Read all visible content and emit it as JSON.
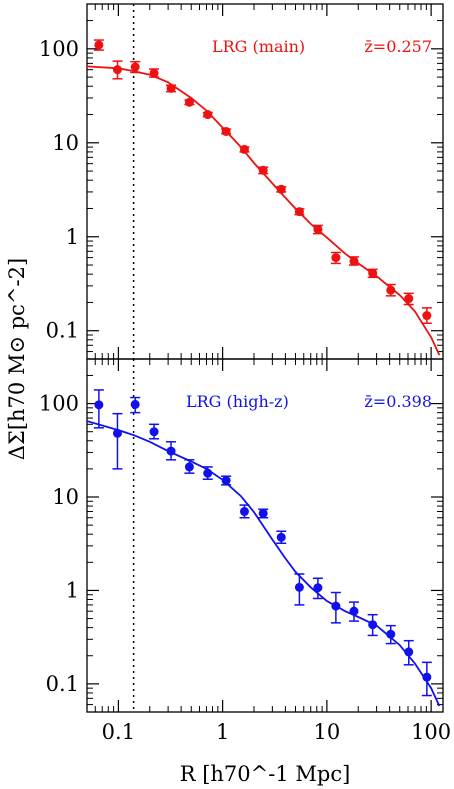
{
  "chart_data": {
    "type": "scatter",
    "xlabel": "R [h70^-1 Mpc]",
    "ylabel": "ΔΣ[h70 M⊙ pc^-2]",
    "x_scale": "log",
    "y_scale": "log",
    "xlim": [
      0.05,
      130
    ],
    "ylim": [
      0.05,
      300
    ],
    "x_ticks": [
      "0.1",
      "1",
      "10",
      "100"
    ],
    "y_ticks": [
      "0.1",
      "1",
      "10",
      "100"
    ],
    "vline": 0.14,
    "panels": [
      {
        "label": "LRG (main)",
        "zlabel": "z̄=0.257",
        "color": "#ee1111",
        "points": [
          {
            "x": 0.065,
            "y": 110,
            "lo": 97,
            "hi": 124
          },
          {
            "x": 0.098,
            "y": 60,
            "lo": 48,
            "hi": 74
          },
          {
            "x": 0.145,
            "y": 64,
            "lo": 56,
            "hi": 73
          },
          {
            "x": 0.22,
            "y": 55,
            "lo": 50,
            "hi": 61
          },
          {
            "x": 0.32,
            "y": 38,
            "lo": 35,
            "hi": 41
          },
          {
            "x": 0.48,
            "y": 27,
            "lo": 25.5,
            "hi": 28.5
          },
          {
            "x": 0.72,
            "y": 20,
            "lo": 19,
            "hi": 21
          },
          {
            "x": 1.08,
            "y": 13.2,
            "lo": 12.5,
            "hi": 14
          },
          {
            "x": 1.62,
            "y": 8.5,
            "lo": 8,
            "hi": 9
          },
          {
            "x": 2.45,
            "y": 5.1,
            "lo": 4.7,
            "hi": 5.5
          },
          {
            "x": 3.65,
            "y": 3.2,
            "lo": 3,
            "hi": 3.4
          },
          {
            "x": 5.45,
            "y": 1.85,
            "lo": 1.72,
            "hi": 1.98
          },
          {
            "x": 8.2,
            "y": 1.2,
            "lo": 1.08,
            "hi": 1.32
          },
          {
            "x": 12.2,
            "y": 0.6,
            "lo": 0.52,
            "hi": 0.68
          },
          {
            "x": 18.2,
            "y": 0.55,
            "lo": 0.5,
            "hi": 0.61
          },
          {
            "x": 27.5,
            "y": 0.41,
            "lo": 0.37,
            "hi": 0.45
          },
          {
            "x": 41,
            "y": 0.27,
            "lo": 0.235,
            "hi": 0.31
          },
          {
            "x": 61,
            "y": 0.22,
            "lo": 0.19,
            "hi": 0.25
          },
          {
            "x": 91,
            "y": 0.145,
            "lo": 0.12,
            "hi": 0.175
          }
        ],
        "model": {
          "x": [
            0.05,
            0.1,
            0.14,
            0.2,
            0.3,
            0.5,
            0.7,
            1,
            1.5,
            2,
            3,
            4,
            5,
            7,
            10,
            15,
            20,
            30,
            50,
            70,
            100,
            120
          ],
          "y": [
            65,
            62,
            58,
            53,
            44,
            30,
            22,
            14.5,
            9,
            6.1,
            3.7,
            2.6,
            2,
            1.37,
            0.98,
            0.66,
            0.52,
            0.38,
            0.24,
            0.16,
            0.085,
            0.055
          ]
        }
      },
      {
        "label": "LRG (high-z)",
        "zlabel": "z̄=0.398",
        "color": "#1111ee",
        "points": [
          {
            "x": 0.065,
            "y": 97,
            "lo": 55,
            "hi": 140
          },
          {
            "x": 0.098,
            "y": 48,
            "lo": 20,
            "hi": 78
          },
          {
            "x": 0.145,
            "y": 98,
            "lo": 80,
            "hi": 116
          },
          {
            "x": 0.22,
            "y": 50,
            "lo": 42,
            "hi": 60
          },
          {
            "x": 0.32,
            "y": 31,
            "lo": 25,
            "hi": 39
          },
          {
            "x": 0.48,
            "y": 21,
            "lo": 18,
            "hi": 25
          },
          {
            "x": 0.72,
            "y": 18,
            "lo": 15.5,
            "hi": 21
          },
          {
            "x": 1.08,
            "y": 15,
            "lo": 13.5,
            "hi": 16.7
          },
          {
            "x": 1.62,
            "y": 7,
            "lo": 6,
            "hi": 8.2
          },
          {
            "x": 2.45,
            "y": 6.7,
            "lo": 6,
            "hi": 7.4
          },
          {
            "x": 3.65,
            "y": 3.7,
            "lo": 3.2,
            "hi": 4.3
          },
          {
            "x": 5.45,
            "y": 1.08,
            "lo": 0.7,
            "hi": 1.5
          },
          {
            "x": 8.2,
            "y": 1.07,
            "lo": 0.82,
            "hi": 1.35
          },
          {
            "x": 12.2,
            "y": 0.68,
            "lo": 0.45,
            "hi": 0.95
          },
          {
            "x": 18.2,
            "y": 0.6,
            "lo": 0.47,
            "hi": 0.75
          },
          {
            "x": 27.5,
            "y": 0.43,
            "lo": 0.33,
            "hi": 0.55
          },
          {
            "x": 41,
            "y": 0.34,
            "lo": 0.27,
            "hi": 0.42
          },
          {
            "x": 61,
            "y": 0.22,
            "lo": 0.16,
            "hi": 0.29
          },
          {
            "x": 91,
            "y": 0.118,
            "lo": 0.075,
            "hi": 0.17
          }
        ],
        "model": {
          "x": [
            0.05,
            0.1,
            0.14,
            0.2,
            0.3,
            0.5,
            0.7,
            1,
            1.5,
            2,
            3,
            4,
            5,
            7,
            10,
            15,
            20,
            30,
            50,
            70,
            100,
            120
          ],
          "y": [
            65,
            52,
            46,
            39,
            31,
            24,
            20,
            15.3,
            10.2,
            6.9,
            3.5,
            2.2,
            1.58,
            1.08,
            0.77,
            0.6,
            0.52,
            0.42,
            0.26,
            0.165,
            0.09,
            0.058
          ]
        }
      }
    ]
  }
}
